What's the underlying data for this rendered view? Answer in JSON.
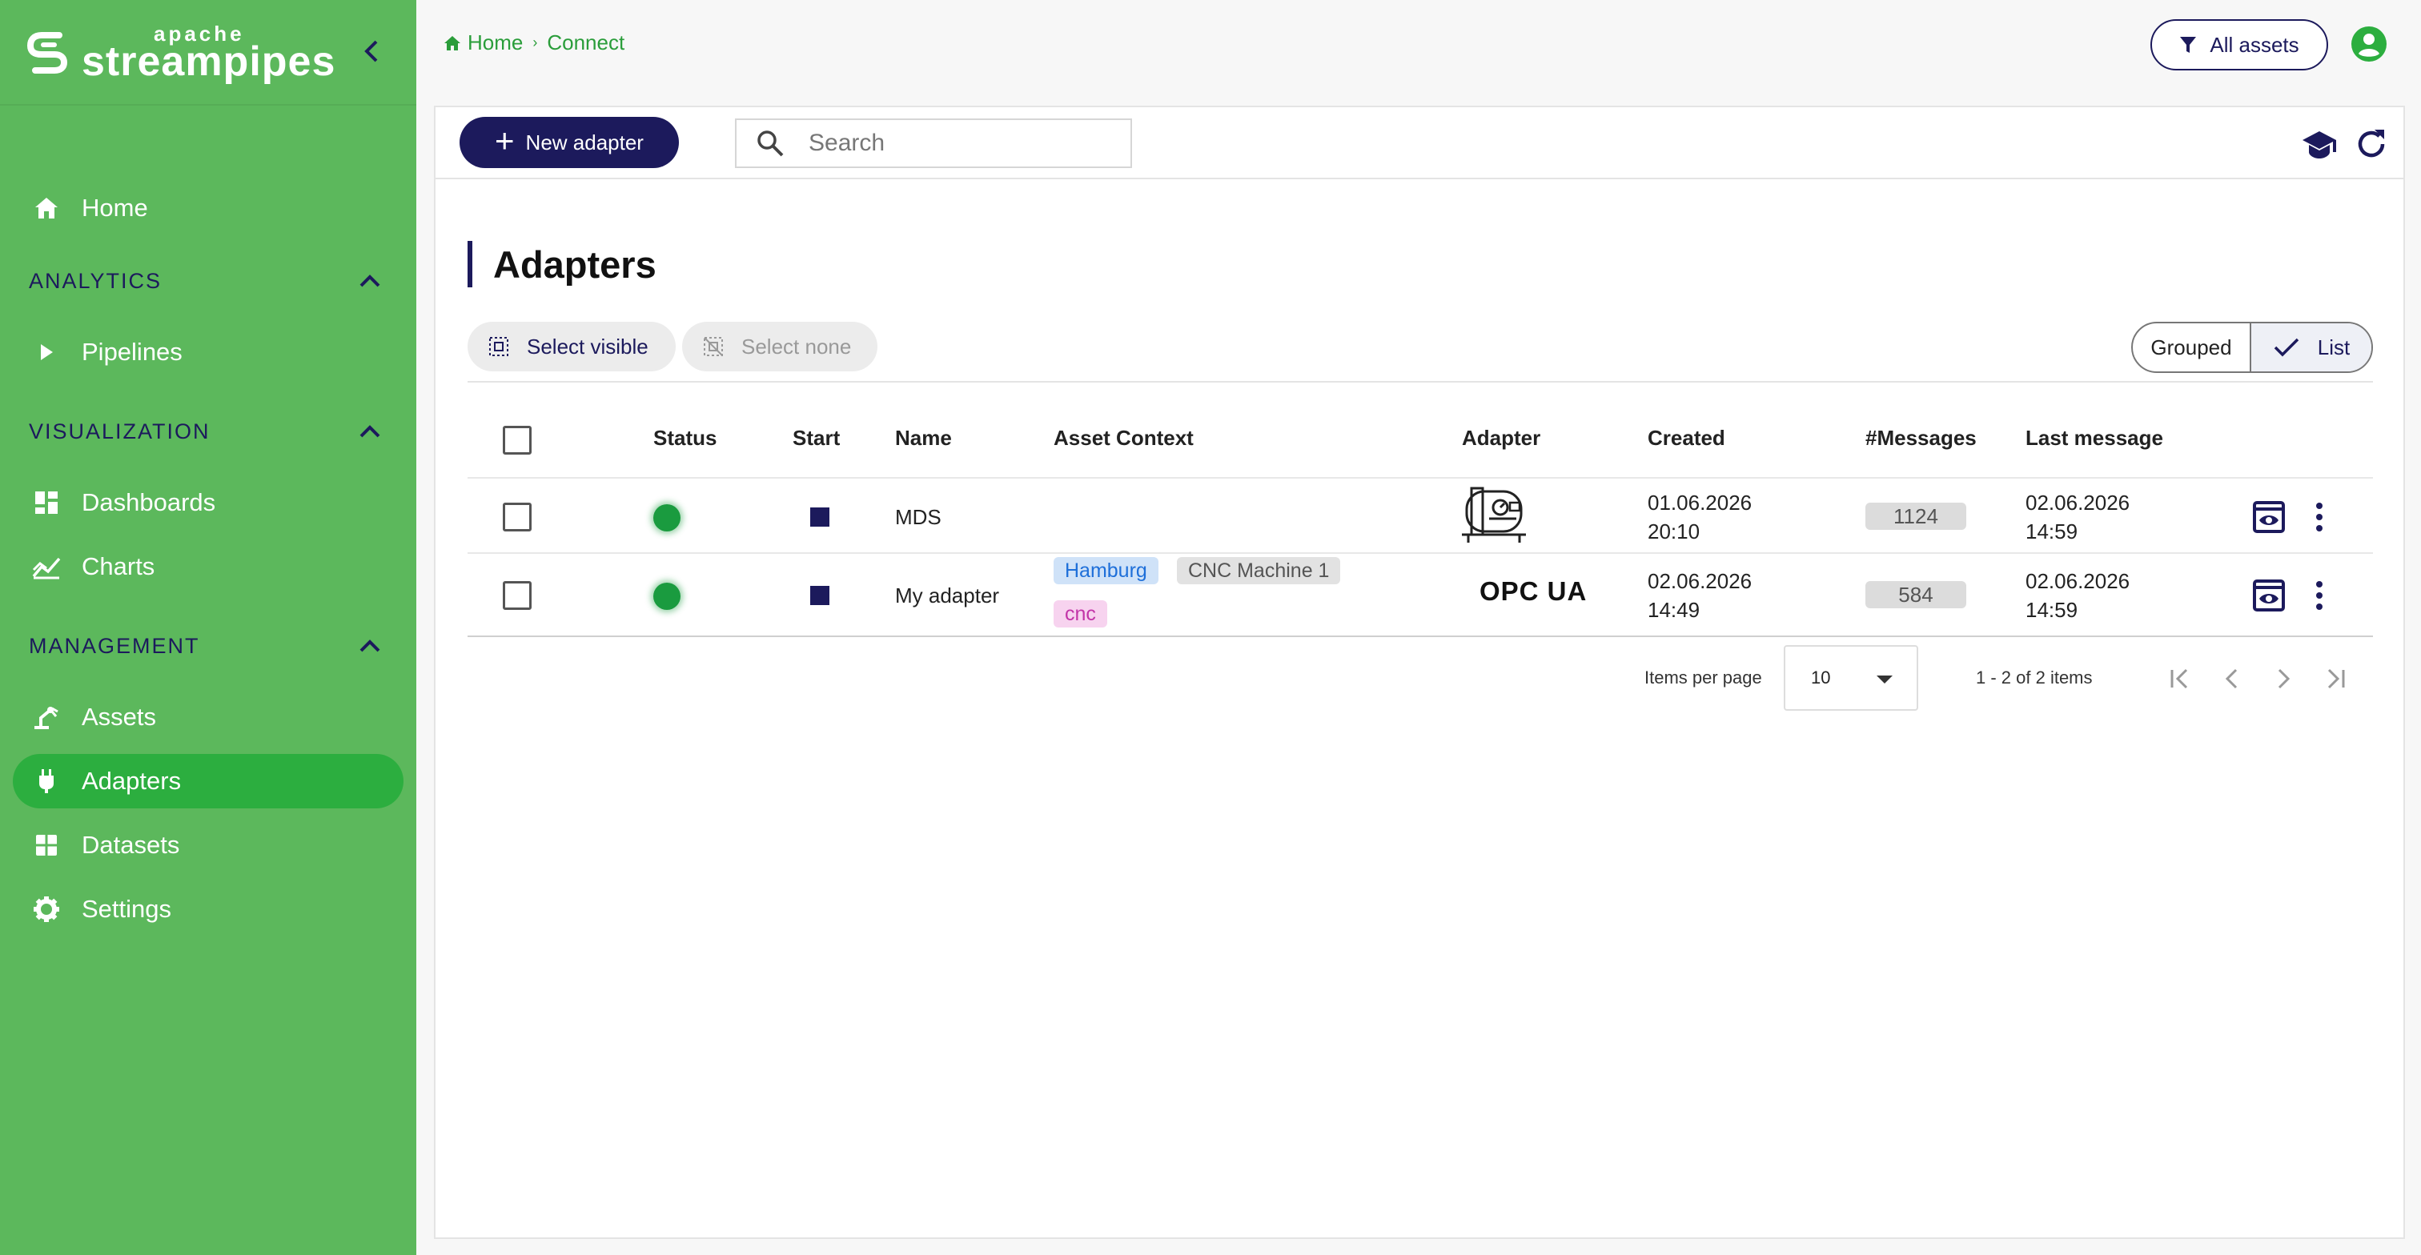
{
  "app": {
    "logo_small": "apache",
    "logo_name": "streampipes"
  },
  "sidebar": {
    "home": "Home",
    "sections": [
      {
        "title": "ANALYTICS",
        "items": [
          "Pipelines"
        ]
      },
      {
        "title": "VISUALIZATION",
        "items": [
          "Dashboards",
          "Charts"
        ]
      },
      {
        "title": "MANAGEMENT",
        "items": [
          "Assets",
          "Adapters",
          "Datasets",
          "Settings"
        ]
      }
    ],
    "active_item": "Adapters"
  },
  "breadcrumb": [
    "Home",
    "Connect"
  ],
  "header": {
    "all_assets_label": "All assets"
  },
  "toolbar": {
    "new_adapter_label": "New adapter",
    "search_placeholder": "Search"
  },
  "page": {
    "title": "Adapters",
    "select_visible_label": "Select visible",
    "select_none_label": "Select none",
    "view_grouped_label": "Grouped",
    "view_list_label": "List",
    "active_view": "List"
  },
  "table": {
    "columns": [
      "Status",
      "Start",
      "Name",
      "Asset Context",
      "Adapter",
      "Created",
      "#Messages",
      "Last message"
    ],
    "rows": [
      {
        "status": "running",
        "name": "MDS",
        "asset_context": [],
        "adapter": "",
        "adapter_icon": "machine-icon",
        "created_date": "01.06.2026",
        "created_time": "20:10",
        "messages": "1124",
        "last_message_date": "02.06.2026",
        "last_message_time": "14:59"
      },
      {
        "status": "running",
        "name": "My adapter",
        "asset_context": [
          {
            "label": "Hamburg",
            "color": "#1e6fd9"
          },
          {
            "label": "CNC Machine 1",
            "color": "#555555"
          },
          {
            "label": "cnc",
            "color": "#c234a8"
          }
        ],
        "adapter": "OPC UA",
        "created_date": "02.06.2026",
        "created_time": "14:49",
        "messages": "584",
        "last_message_date": "02.06.2026",
        "last_message_time": "14:59"
      }
    ]
  },
  "pagination": {
    "items_per_page_label": "Items per page",
    "items_per_page": "10",
    "range_label": "1 - 2 of 2 items"
  },
  "colors": {
    "sidebar_bg": "#5cb85c",
    "sidebar_active": "#2cae3f",
    "primary": "#1c1a5c",
    "accent_green": "#2a9d3a",
    "status_running": "#1a9b3f"
  }
}
